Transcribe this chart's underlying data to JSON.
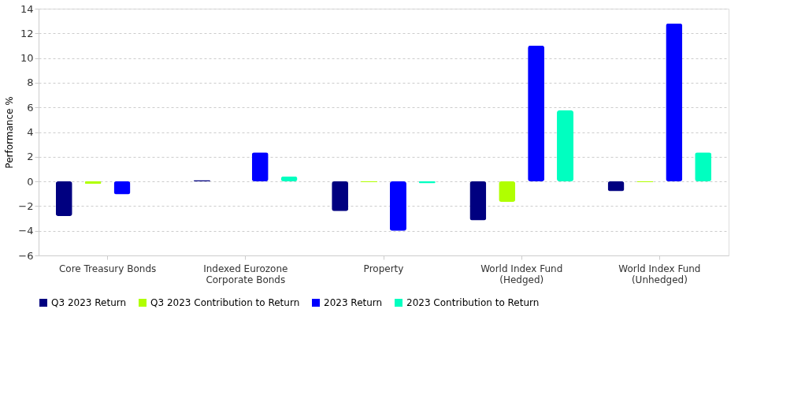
{
  "chart_data": {
    "type": "bar",
    "ylabel": "Performance %",
    "categories": [
      "Core Treasury Bonds",
      "Indexed Eurozone\nCorporate Bonds",
      "Property",
      "World Index Fund\n(Hedged)",
      "World Index Fund\n(Unhedged)"
    ],
    "series": [
      {
        "name": "Q3 2023 Return",
        "color": "#000080",
        "values": [
          -2.8,
          0.1,
          -2.4,
          -3.15,
          -0.8
        ]
      },
      {
        "name": "Q3 2023 Contribution to Return",
        "color": "#b0ff00",
        "values": [
          -0.2,
          0,
          -0.05,
          -1.65,
          -0.05
        ]
      },
      {
        "name": "2023 Return",
        "color": "#0000ff",
        "values": [
          -1.05,
          2.35,
          -4.0,
          11.0,
          12.8
        ]
      },
      {
        "name": "2023 Contribution to Return",
        "color": "#00ffc0",
        "values": [
          0,
          0.4,
          -0.15,
          5.75,
          2.35
        ]
      }
    ],
    "ylim": [
      -6,
      14
    ],
    "yticks": [
      -6,
      -4,
      -2,
      0,
      2,
      4,
      6,
      8,
      10,
      12,
      14
    ],
    "grid": "y",
    "legend": "bottom"
  }
}
